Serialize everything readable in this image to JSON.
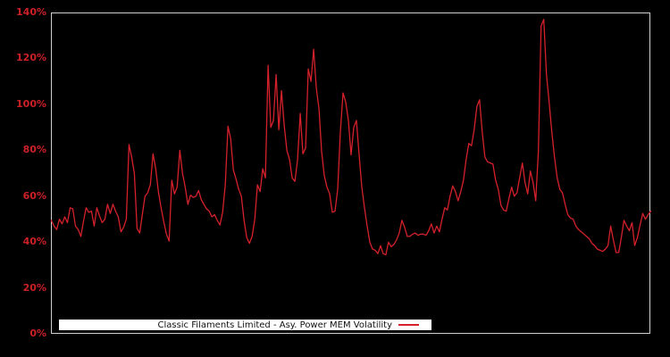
{
  "figure": {
    "background": "#000000",
    "plot_border_color": "#cfcfcf",
    "accent_red": "#d4212b",
    "tick_label_color": "#cc2027"
  },
  "y_axis": {
    "tick_labels": [
      "0%",
      "20%",
      "40%",
      "60%",
      "80%",
      "100%",
      "120%",
      "140%"
    ]
  },
  "legend": {
    "label": "Classic Filaments Limited - Asy. Power MEM Volatility"
  },
  "chart_data": {
    "type": "line",
    "title": "",
    "xlabel": "",
    "ylabel": "",
    "unit": "%",
    "ylim": [
      0,
      140
    ],
    "y_ticks_percent": [
      0,
      20,
      40,
      60,
      80,
      100,
      120,
      140
    ],
    "grid": false,
    "background": "#000000",
    "line_color": "#d4212b",
    "legend_position": "bottom-left-inside",
    "x_axis_note": "unlabeled time axis, evenly spaced samples",
    "series": [
      {
        "name": "Classic Filaments Limited - Asy. Power MEM Volatility",
        "values": [
          49.5,
          47,
          45.5,
          50,
          48,
          51,
          48.5,
          55,
          54.5,
          47,
          45.5,
          42.5,
          49,
          55,
          53,
          53.5,
          47,
          55,
          51.5,
          48.5,
          50,
          56.5,
          52.5,
          56.5,
          53.5,
          51,
          44.5,
          46.5,
          50,
          82.5,
          77,
          70,
          46,
          44,
          52,
          60,
          61.5,
          65,
          78.5,
          72,
          62,
          55,
          49,
          43.5,
          40.5,
          67,
          61,
          64,
          80,
          70,
          64,
          56.5,
          60.5,
          59.5,
          60,
          62.5,
          58.5,
          56.5,
          54.5,
          53.5,
          51,
          52,
          49.5,
          47.5,
          53,
          65,
          90.5,
          85,
          71.5,
          67.5,
          63,
          60,
          49.5,
          42,
          39.5,
          42.5,
          50,
          65,
          62,
          72,
          68,
          117,
          90,
          93,
          113,
          89,
          106,
          91,
          80,
          76,
          68,
          66.5,
          76,
          96,
          78.5,
          81,
          115.5,
          110,
          124,
          107,
          98,
          79.5,
          69,
          64,
          61,
          53,
          53.5,
          63,
          88,
          105,
          101,
          93,
          78,
          90,
          93,
          78,
          64,
          55,
          47,
          40,
          37,
          36.5,
          35,
          38.5,
          35,
          34.5,
          40,
          38,
          39,
          41,
          44,
          49.5,
          46.5,
          42.5,
          42.5,
          43.5,
          44,
          43,
          43.5,
          43.5,
          43,
          45,
          48,
          44,
          47,
          44.5,
          50,
          55,
          54,
          60,
          64.5,
          62,
          58,
          62,
          67,
          76,
          83,
          82,
          89,
          99,
          102,
          88,
          77,
          75,
          74.5,
          74,
          67,
          63,
          56,
          54,
          53.5,
          59,
          64,
          60,
          61.5,
          68,
          74.5,
          66,
          61,
          71,
          66,
          58,
          80,
          134,
          137,
          113,
          101,
          88,
          77,
          68,
          63,
          61.5,
          56.5,
          52,
          50.5,
          50,
          47,
          45.5,
          44.5,
          43.5,
          42.5,
          41.5,
          39.5,
          38.5,
          37,
          36.5,
          36,
          37,
          38.5,
          47,
          41,
          35.5,
          35.5,
          42,
          49.5,
          47,
          45,
          48.5,
          38.5,
          42,
          47.5,
          52.5,
          50,
          52,
          53.5
        ]
      }
    ]
  }
}
